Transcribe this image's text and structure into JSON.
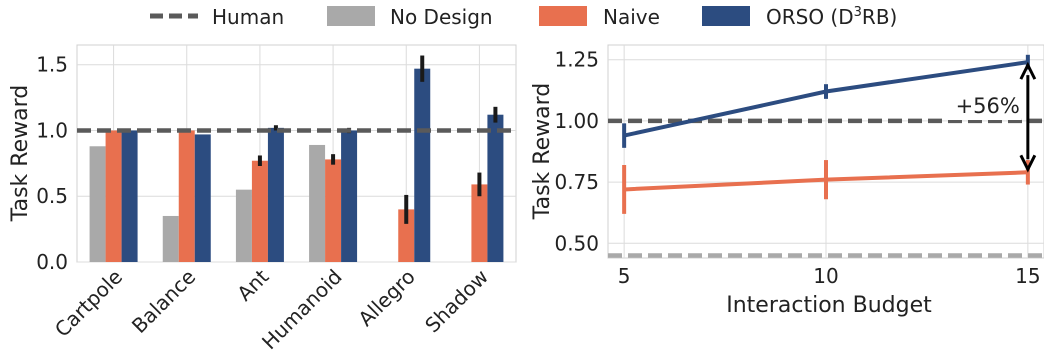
{
  "legend": {
    "items": [
      {
        "label": "Human",
        "kind": "dash",
        "color": "#5a5a5a"
      },
      {
        "label": "No Design",
        "kind": "box",
        "color": "#a9a9a9"
      },
      {
        "label": "Naive",
        "kind": "box",
        "color": "#e8704f"
      },
      {
        "label": "ORSO (D",
        "sup": "3",
        "suffix": "RB)",
        "kind": "box",
        "color": "#2c4c80"
      }
    ]
  },
  "chart_data": [
    {
      "type": "bar",
      "ylabel": "Task Reward",
      "xlabel": "",
      "ylim": [
        0,
        1.65
      ],
      "yticks": [
        "0.0",
        "0.5",
        "1.0",
        "1.5"
      ],
      "grid": true,
      "categories": [
        "Cartpole",
        "Balance",
        "Ant",
        "Humanoid",
        "Allegro",
        "Shadow"
      ],
      "series": [
        {
          "name": "No Design",
          "color": "#a9a9a9",
          "values": [
            0.88,
            0.35,
            0.55,
            0.89,
            0.0,
            0.0
          ],
          "errors": [
            0,
            0,
            0,
            0,
            0,
            0
          ]
        },
        {
          "name": "Naive",
          "color": "#e8704f",
          "values": [
            1.0,
            1.0,
            0.77,
            0.78,
            0.4,
            0.59
          ],
          "errors": [
            0,
            0,
            0.04,
            0.04,
            0.11,
            0.09
          ]
        },
        {
          "name": "ORSO (D3RB)",
          "color": "#2c4c80",
          "values": [
            1.0,
            0.97,
            1.02,
            1.0,
            1.47,
            1.12
          ],
          "errors": [
            0,
            0,
            0.02,
            0.02,
            0.1,
            0.06
          ]
        }
      ],
      "reference_line": {
        "name": "Human",
        "value": 1.0,
        "color": "#5a5a5a"
      }
    },
    {
      "type": "line",
      "ylabel": "Task Reward",
      "xlabel": "Interaction Budget",
      "x": [
        5,
        10,
        15
      ],
      "xticks": [
        "5",
        "10",
        "15"
      ],
      "xlim": [
        4.6,
        15.4
      ],
      "ylim": [
        0.44,
        1.31
      ],
      "yticks": [
        "0.50",
        "0.75",
        "1.00",
        "1.25"
      ],
      "grid": true,
      "series": [
        {
          "name": "ORSO (D3RB)",
          "color": "#2c4c80",
          "values": [
            0.94,
            1.12,
            1.24
          ],
          "errors": [
            0.05,
            0.03,
            0.03
          ]
        },
        {
          "name": "Naive",
          "color": "#e8704f",
          "values": [
            0.72,
            0.76,
            0.79
          ],
          "errors": [
            0.1,
            0.08,
            0.05
          ]
        }
      ],
      "reference_lines": [
        {
          "name": "Human",
          "value": 1.0,
          "color": "#5a5a5a"
        },
        {
          "name": "No Design",
          "value": 0.45,
          "color": "#a9a9a9"
        }
      ],
      "annotation": {
        "text": "+56%",
        "x": 15,
        "y_from": 0.79,
        "y_to": 1.24
      }
    }
  ]
}
